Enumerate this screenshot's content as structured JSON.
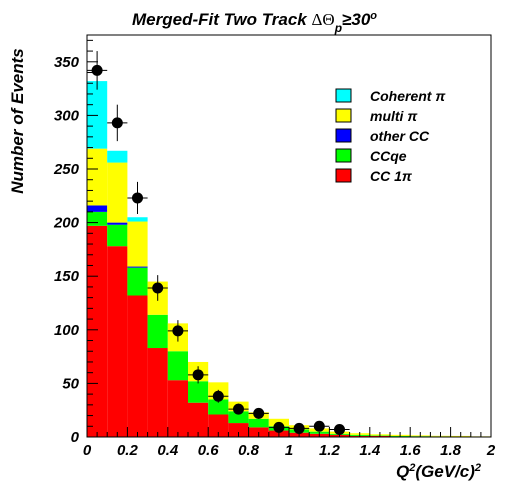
{
  "chart_data": {
    "type": "bar",
    "stacked": true,
    "title": "Merged-Fit Two Track ΔΘp≥30°",
    "title_parts": {
      "main": "Merged-Fit Two Track ",
      "delta": "ΔΘ",
      "sub": "p",
      "rel": "≥30",
      "sup": "o"
    },
    "xlabel": "Q²(GeV/c)²",
    "xlabel_parts": {
      "q": "Q",
      "q_sup": "2",
      "unit": "(GeV/c)",
      "unit_sup": "2"
    },
    "ylabel": "Number of Events",
    "xlim": [
      0,
      2
    ],
    "ylim": [
      0,
      375
    ],
    "x_ticks": [
      "0",
      "0.2",
      "0.4",
      "0.6",
      "0.8",
      "1",
      "1.2",
      "1.4",
      "1.6",
      "1.8",
      "2"
    ],
    "y_ticks": [
      "0",
      "50",
      "100",
      "150",
      "200",
      "250",
      "300",
      "350"
    ],
    "bin_width": 0.1,
    "bin_edges": [
      0.0,
      0.1,
      0.2,
      0.3,
      0.4,
      0.5,
      0.6,
      0.7,
      0.8,
      0.9,
      1.0,
      1.1,
      1.2,
      1.3,
      1.4,
      1.5,
      1.6,
      1.7,
      1.8,
      1.9,
      2.0
    ],
    "legend_position": "top-right",
    "series": [
      {
        "name": "CC 1π",
        "color": "#ff0000",
        "values": [
          197,
          178,
          132,
          83,
          53,
          32,
          21,
          13,
          9,
          6,
          4,
          3,
          2,
          1,
          1,
          0.5,
          0.5,
          0.3,
          0.3,
          0.2
        ]
      },
      {
        "name": "CCqe",
        "color": "#00ff00",
        "values": [
          13,
          20,
          26,
          31,
          27,
          20,
          14,
          11,
          8,
          4,
          3,
          2,
          1,
          1,
          0.5,
          0.5,
          0.3,
          0.3,
          0.2,
          0.1
        ]
      },
      {
        "name": "other CC",
        "color": "#0000ff",
        "values": [
          6,
          2,
          1,
          0,
          0,
          0,
          0,
          0,
          0,
          0,
          0,
          0,
          0,
          0,
          0,
          0,
          0,
          0,
          0,
          0
        ]
      },
      {
        "name": "multi π",
        "color": "#ffff00",
        "values": [
          53,
          56,
          42,
          31,
          26,
          18,
          16,
          9,
          6,
          7,
          4,
          3,
          2,
          1.5,
          1,
          1,
          0.7,
          0.5,
          0.5,
          0.3
        ]
      },
      {
        "name": "Coherent π",
        "color": "#00ffff",
        "values": [
          63,
          11,
          4,
          0,
          0,
          0,
          0,
          0,
          0,
          0,
          0,
          0,
          0,
          0,
          0,
          0,
          0,
          0,
          0,
          0
        ]
      }
    ],
    "legend_order": [
      "Coherent π",
      "multi π",
      "other CC",
      "CCqe",
      "CC 1π"
    ],
    "data_points": {
      "x": [
        0.05,
        0.15,
        0.25,
        0.35,
        0.45,
        0.55,
        0.65,
        0.75,
        0.85,
        0.95,
        1.05,
        1.15,
        1.25
      ],
      "y": [
        342,
        293,
        223,
        139,
        99,
        58,
        38,
        26,
        22,
        9,
        8,
        10,
        7
      ],
      "yerr": [
        18,
        17,
        15,
        12,
        10,
        8,
        6,
        5,
        5,
        3,
        3,
        3,
        3
      ]
    }
  }
}
